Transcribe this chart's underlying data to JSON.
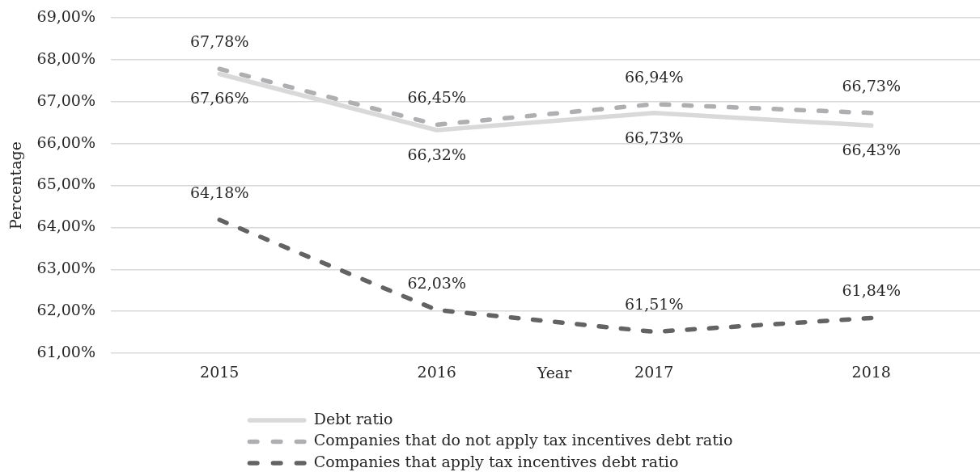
{
  "chart_data": {
    "type": "line",
    "xlabel": "Year",
    "ylabel": "Percentage",
    "categories": [
      "2015",
      "2016",
      "2017",
      "2018"
    ],
    "series": [
      {
        "name": "Debt ratio",
        "color": "#d9d9d9",
        "line_style": "solid",
        "values": [
          67.66,
          66.32,
          66.73,
          66.43
        ],
        "value_labels": [
          "67,66%",
          "66,32%",
          "66,73%",
          "66,43%"
        ]
      },
      {
        "name": "Companies that do not apply tax incentives debt ratio",
        "color": "#afafb2",
        "line_style": "dashed",
        "values": [
          67.78,
          66.45,
          66.94,
          66.73
        ],
        "value_labels": [
          "67,78%",
          "66,45%",
          "66,94%",
          "66,73%"
        ]
      },
      {
        "name": "Companies that apply tax incentives debt ratio",
        "color": "#636363",
        "line_style": "dashed",
        "values": [
          64.18,
          62.03,
          61.51,
          61.84
        ],
        "value_labels": [
          "64,18%",
          "62,03%",
          "61,51%",
          "61,84%"
        ]
      }
    ],
    "ylim": [
      61,
      69
    ],
    "yticks": [
      {
        "value": 61,
        "label": "61,00%"
      },
      {
        "value": 62,
        "label": "62,00%"
      },
      {
        "value": 63,
        "label": "63,00%"
      },
      {
        "value": 64,
        "label": "64,00%"
      },
      {
        "value": 65,
        "label": "65,00%"
      },
      {
        "value": 66,
        "label": "66,00%"
      },
      {
        "value": 67,
        "label": "67,00%"
      },
      {
        "value": 68,
        "label": "68,00%"
      },
      {
        "value": 69,
        "label": "69,00%"
      }
    ],
    "grid": "y",
    "legend": "bottom",
    "marker": "none"
  }
}
